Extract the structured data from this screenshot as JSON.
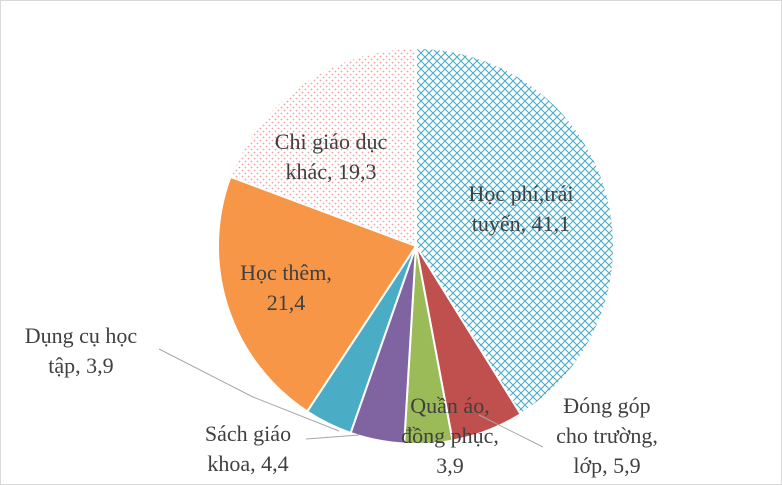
{
  "chart_data": {
    "type": "pie",
    "title": "",
    "slices": [
      {
        "line1": "Học phí,trái",
        "line2": "tuyến, 41,1",
        "value": 41.1,
        "color": "#4bacc6",
        "pattern": "crosshatch"
      },
      {
        "line1": "Đóng góp",
        "line2": "cho trường,",
        "line3": "lớp, 5,9",
        "value": 5.9,
        "color": "#c0504d",
        "pattern": "none"
      },
      {
        "line1": "Quần áo,",
        "line2": "đồng phục,",
        "line3": "3,9",
        "value": 3.9,
        "color": "#9bbb59",
        "pattern": "none"
      },
      {
        "line1": "Sách giáo",
        "line2": "khoa, 4,4",
        "value": 4.4,
        "color": "#8064a2",
        "pattern": "none"
      },
      {
        "line1": "Dụng cụ học",
        "line2": "tập, 3,9",
        "value": 3.9,
        "color": "#4bacc6",
        "pattern": "none"
      },
      {
        "line1": "Học thêm,",
        "line2": "21,4",
        "value": 21.4,
        "color": "#f79646",
        "pattern": "none"
      },
      {
        "line1": "Chi giáo dục",
        "line2": "khác, 19,3",
        "value": 19.3,
        "color": "#f2a0a0",
        "pattern": "dots"
      }
    ]
  }
}
